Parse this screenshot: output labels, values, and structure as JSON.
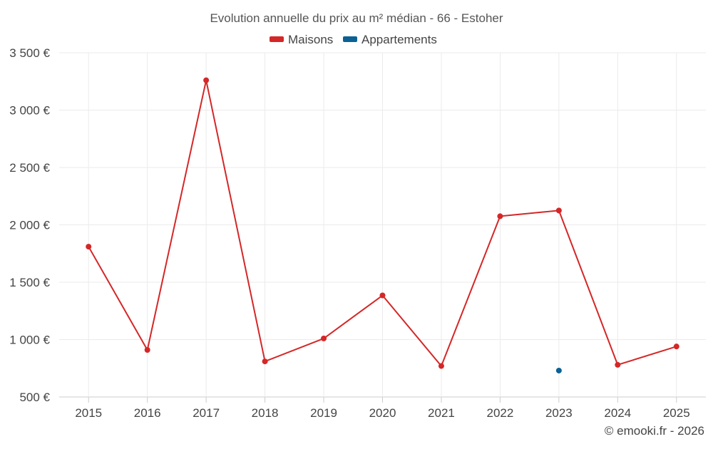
{
  "chart_data": {
    "type": "line",
    "title": "Evolution annuelle du prix au m² médian - 66 - Estoher",
    "categories": [
      "2015",
      "2016",
      "2017",
      "2018",
      "2019",
      "2020",
      "2021",
      "2022",
      "2023",
      "2024",
      "2025"
    ],
    "series": [
      {
        "name": "Maisons",
        "color": "#d42727",
        "values": [
          1810,
          910,
          3260,
          810,
          1010,
          1385,
          770,
          2075,
          2125,
          780,
          940
        ]
      },
      {
        "name": "Appartements",
        "color": "#0b6196",
        "values": [
          null,
          null,
          null,
          null,
          null,
          null,
          null,
          null,
          730,
          null,
          null
        ]
      }
    ],
    "yticks": [
      500,
      1000,
      1500,
      2000,
      2500,
      3000,
      3500
    ],
    "ytick_labels": [
      "500 €",
      "1 000 €",
      "1 500 €",
      "2 000 €",
      "2 500 €",
      "3 000 €",
      "3 500 €"
    ],
    "ylim": [
      500,
      3500
    ],
    "grid": true,
    "legend_position": "top-center",
    "credit": "© emooki.fr - 2026"
  }
}
